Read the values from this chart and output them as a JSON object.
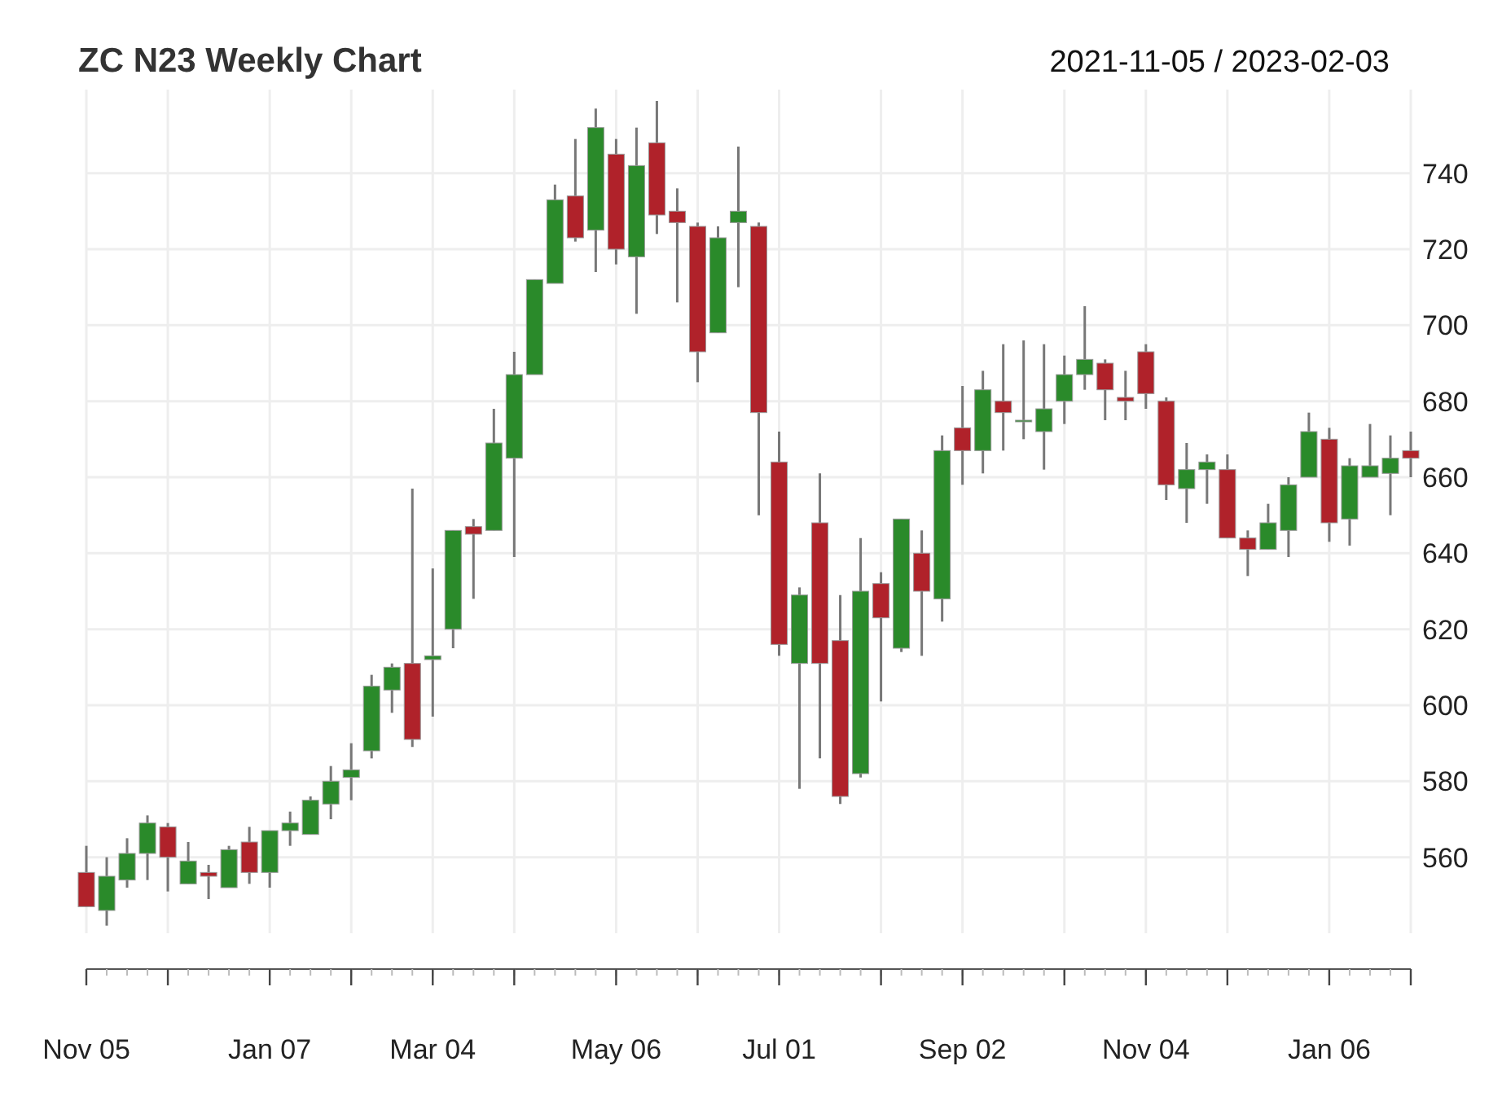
{
  "chart_data": {
    "type": "candlestick",
    "title": "ZC N23 Weekly Chart",
    "subtitle": "2021-11-05 / 2023-02-03",
    "x": [
      "2021-11-05",
      "2021-11-12",
      "2021-11-19",
      "2021-11-26",
      "2021-12-03",
      "2021-12-10",
      "2021-12-17",
      "2021-12-24",
      "2021-12-31",
      "2022-01-07",
      "2022-01-14",
      "2022-01-21",
      "2022-01-28",
      "2022-02-04",
      "2022-02-11",
      "2022-02-18",
      "2022-02-25",
      "2022-03-04",
      "2022-03-11",
      "2022-03-18",
      "2022-03-25",
      "2022-04-01",
      "2022-04-08",
      "2022-04-15",
      "2022-04-22",
      "2022-04-29",
      "2022-05-06",
      "2022-05-13",
      "2022-05-20",
      "2022-05-27",
      "2022-06-03",
      "2022-06-10",
      "2022-06-17",
      "2022-06-24",
      "2022-07-01",
      "2022-07-08",
      "2022-07-15",
      "2022-07-22",
      "2022-07-29",
      "2022-08-05",
      "2022-08-12",
      "2022-08-19",
      "2022-08-26",
      "2022-09-02",
      "2022-09-09",
      "2022-09-16",
      "2022-09-23",
      "2022-09-30",
      "2022-10-07",
      "2022-10-14",
      "2022-10-21",
      "2022-10-28",
      "2022-11-04",
      "2022-11-11",
      "2022-11-18",
      "2022-11-25",
      "2022-12-02",
      "2022-12-09",
      "2022-12-16",
      "2022-12-23",
      "2022-12-30",
      "2023-01-06",
      "2023-01-13",
      "2023-01-20",
      "2023-01-27",
      "2023-02-03"
    ],
    "ohlc": [
      [
        556,
        563,
        547,
        547
      ],
      [
        546,
        560,
        542,
        555
      ],
      [
        554,
        565,
        552,
        561
      ],
      [
        561,
        571,
        554,
        569
      ],
      [
        568,
        569,
        551,
        560
      ],
      [
        553,
        564,
        553,
        559
      ],
      [
        556,
        558,
        549,
        555
      ],
      [
        552,
        563,
        552,
        562
      ],
      [
        564,
        568,
        553,
        556
      ],
      [
        556,
        567,
        552,
        567
      ],
      [
        567,
        572,
        563,
        569
      ],
      [
        566,
        576,
        566,
        575
      ],
      [
        574,
        584,
        570,
        580
      ],
      [
        581,
        590,
        575,
        583
      ],
      [
        588,
        608,
        586,
        605
      ],
      [
        604,
        611,
        598,
        610
      ],
      [
        611,
        657,
        589,
        591
      ],
      [
        612,
        636,
        597,
        613
      ],
      [
        620,
        646,
        615,
        646
      ],
      [
        647,
        649,
        628,
        645
      ],
      [
        646,
        678,
        646,
        669
      ],
      [
        665,
        693,
        639,
        687
      ],
      [
        687,
        712,
        687,
        712
      ],
      [
        711,
        737,
        711,
        733
      ],
      [
        734,
        749,
        722,
        723
      ],
      [
        725,
        757,
        714,
        752
      ],
      [
        745,
        749,
        716,
        720
      ],
      [
        718,
        752,
        703,
        742
      ],
      [
        748,
        759,
        724,
        729
      ],
      [
        730,
        736,
        706,
        727
      ],
      [
        726,
        727,
        685,
        693
      ],
      [
        698,
        726,
        698,
        723
      ],
      [
        727,
        747,
        710,
        730
      ],
      [
        726,
        727,
        650,
        677
      ],
      [
        664,
        672,
        613,
        616
      ],
      [
        611,
        631,
        578,
        629
      ],
      [
        648,
        661,
        586,
        611
      ],
      [
        617,
        629,
        574,
        576
      ],
      [
        582,
        644,
        581,
        630
      ],
      [
        632,
        635,
        601,
        623
      ],
      [
        615,
        649,
        614,
        649
      ],
      [
        640,
        646,
        613,
        630
      ],
      [
        628,
        671,
        622,
        667
      ],
      [
        673,
        684,
        658,
        667
      ],
      [
        667,
        688,
        661,
        683
      ],
      [
        680,
        695,
        667,
        677
      ],
      [
        675,
        696,
        670,
        675
      ],
      [
        672,
        695,
        662,
        678
      ],
      [
        680,
        692,
        674,
        687
      ],
      [
        687,
        705,
        683,
        691
      ],
      [
        690,
        691,
        675,
        683
      ],
      [
        681,
        688,
        675,
        680
      ],
      [
        693,
        695,
        678,
        682
      ],
      [
        680,
        681,
        654,
        658
      ],
      [
        657,
        669,
        648,
        662
      ],
      [
        662,
        666,
        653,
        664
      ],
      [
        662,
        666,
        644,
        644
      ],
      [
        644,
        646,
        634,
        641
      ],
      [
        641,
        653,
        641,
        648
      ],
      [
        646,
        660,
        639,
        658
      ],
      [
        660,
        677,
        660,
        672
      ],
      [
        670,
        673,
        643,
        648
      ],
      [
        649,
        665,
        642,
        663
      ],
      [
        660,
        674,
        660,
        663
      ],
      [
        661,
        671,
        650,
        665
      ],
      [
        667,
        672,
        660,
        665
      ]
    ],
    "xlim": [
      "2021-11-05",
      "2023-02-03"
    ],
    "xticks": [
      {
        "value": "2021-11-05",
        "label": "Nov 05"
      },
      {
        "value": "2021-12-03",
        "label": null
      },
      {
        "value": "2022-01-07",
        "label": "Jan 07"
      },
      {
        "value": "2022-02-04",
        "label": null
      },
      {
        "value": "2022-03-04",
        "label": "Mar 04"
      },
      {
        "value": "2022-04-01",
        "label": null
      },
      {
        "value": "2022-05-06",
        "label": "May 06"
      },
      {
        "value": "2022-06-03",
        "label": null
      },
      {
        "value": "2022-07-01",
        "label": "Jul 01"
      },
      {
        "value": "2022-08-05",
        "label": null
      },
      {
        "value": "2022-09-02",
        "label": "Sep 02"
      },
      {
        "value": "2022-10-07",
        "label": null
      },
      {
        "value": "2022-11-04",
        "label": "Nov 04"
      },
      {
        "value": "2022-12-02",
        "label": null
      },
      {
        "value": "2023-01-06",
        "label": "Jan 06"
      },
      {
        "value": "2023-02-03",
        "label": null
      }
    ],
    "ylim": [
      540,
      762
    ],
    "yticks": [
      560,
      580,
      600,
      620,
      640,
      660,
      680,
      700,
      720,
      740
    ],
    "grid": true
  }
}
